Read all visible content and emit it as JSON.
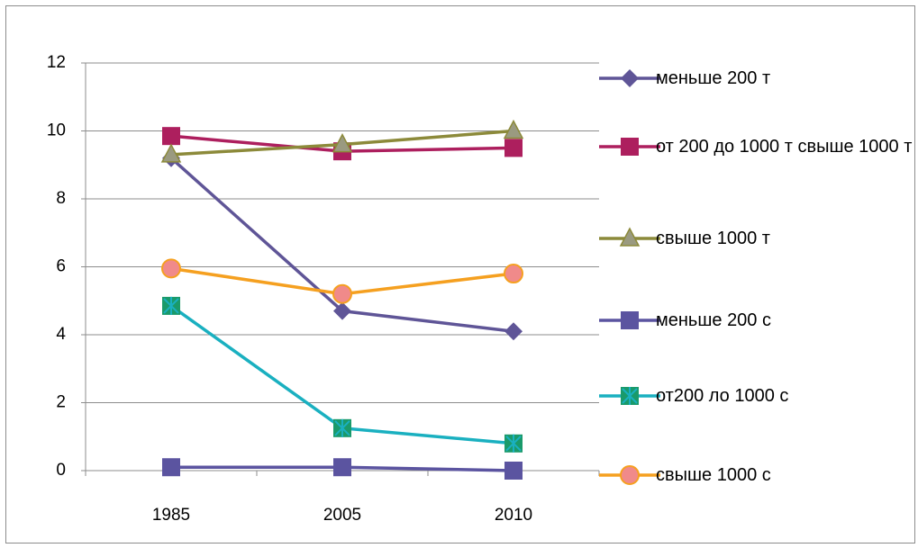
{
  "chart_data": {
    "type": "line",
    "categories": [
      "1985",
      "2005",
      "2010"
    ],
    "ylim": [
      0,
      12
    ],
    "yticks": [
      0,
      2,
      4,
      6,
      8,
      10,
      12
    ],
    "grid": true,
    "legend": "right",
    "series": [
      {
        "name": "меньше 200 т",
        "color": "#5f5597",
        "marker": "diamond",
        "marker_color": "#5f5597",
        "values": [
          9.2,
          4.7,
          4.1
        ]
      },
      {
        "name": "от 200 до 1000 т свыше 1000 т",
        "color": "#ad1f5e",
        "marker": "square",
        "marker_color": "#ad1f5e",
        "values": [
          9.85,
          9.4,
          9.5
        ]
      },
      {
        "name": "свыше 1000 т",
        "color": "#8c8a3a",
        "marker": "triangle",
        "marker_color": "#9a9a80",
        "values": [
          9.3,
          9.6,
          10.0
        ]
      },
      {
        "name": "меньше 200 с",
        "color": "#5b54a0",
        "marker": "square",
        "marker_color": "#5b54a0",
        "values": [
          0.1,
          0.1,
          0
        ]
      },
      {
        "name": "от200 ло 1000 с",
        "color": "#1ab0c0",
        "marker": "star",
        "marker_color": "#1a9a6a",
        "values": [
          4.85,
          1.25,
          0.8
        ]
      },
      {
        "name": "свыше 1000 с",
        "color": "#f5a020",
        "marker": "circle",
        "marker_color": "#f08a8a",
        "values": [
          5.95,
          5.2,
          5.8
        ]
      }
    ]
  }
}
